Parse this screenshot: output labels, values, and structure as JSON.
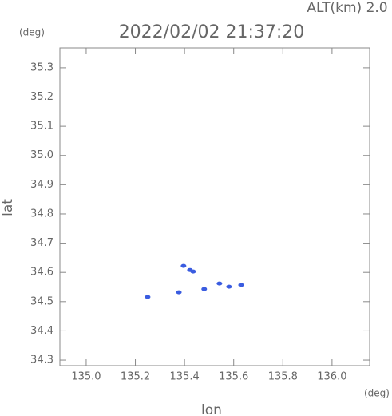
{
  "chart_data": {
    "type": "scatter",
    "title": "2022/02/02 21:37:20",
    "subtitle": "ALT(km) 2.0",
    "x_label": "lon",
    "y_label": "lat",
    "x_unit": "(deg)",
    "y_unit": "(deg)",
    "xlim": [
      134.893,
      136.153
    ],
    "ylim": [
      34.281,
      35.368
    ],
    "xticks": [
      {
        "value": 135.0,
        "label": "135.0"
      },
      135.2,
      135.4,
      135.6,
      135.8,
      {
        "value": 136.0,
        "label": "136.0"
      }
    ],
    "yticks": [
      34.3,
      34.4,
      34.5,
      34.6,
      34.7,
      34.8,
      34.9,
      {
        "value": 35.0,
        "label": "35.0"
      },
      35.1,
      35.2,
      35.3
    ],
    "series": [
      {
        "color": "#3a5ce0",
        "x": [
          135.25,
          135.377,
          135.396,
          135.435,
          135.422,
          135.48,
          135.542,
          135.581,
          135.63
        ],
        "values": [
          34.516,
          34.532,
          34.622,
          34.603,
          34.608,
          34.543,
          34.562,
          34.551,
          34.557
        ]
      }
    ]
  }
}
